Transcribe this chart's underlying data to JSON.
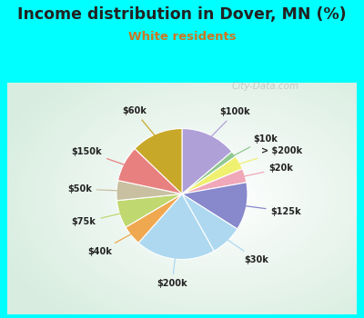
{
  "title": "Income distribution in Dover, MN (%)",
  "subtitle": "White residents",
  "background_color": "#00FFFF",
  "labels": [
    "$100k",
    "$10k",
    "> $200k",
    "$20k",
    "$125k",
    "$30k",
    "$200k",
    "$40k",
    "$75k",
    "$50k",
    "$150k",
    "$60k"
  ],
  "values": [
    14,
    1.5,
    3.5,
    3.5,
    12,
    8,
    20,
    5,
    7,
    5,
    9,
    13
  ],
  "colors": [
    "#b0a0d8",
    "#90c890",
    "#f0f070",
    "#f0a8b8",
    "#8888cc",
    "#add8f0",
    "#add8f0",
    "#f0a850",
    "#c0d870",
    "#c8c0a0",
    "#e88080",
    "#c8a828"
  ],
  "watermark": "City-Data.com",
  "label_fontsize": 7,
  "title_fontsize": 12.5,
  "subtitle_fontsize": 9.5,
  "title_color": "#222222",
  "subtitle_color": "#cc7722"
}
